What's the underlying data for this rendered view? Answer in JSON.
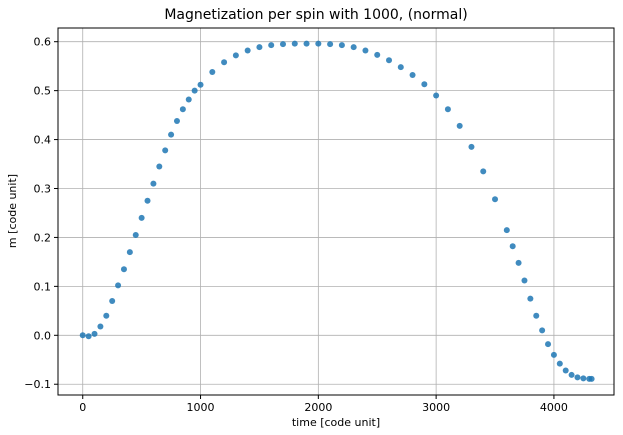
{
  "chart_data": {
    "type": "scatter",
    "title": "Magnetization per spin with 1000, (normal)",
    "xlabel": "time [code unit]",
    "ylabel": "m [code unit]",
    "xlim": [
      -210,
      4510
    ],
    "ylim": [
      -0.122,
      0.628
    ],
    "xticks": [
      0,
      1000,
      2000,
      3000,
      4000
    ],
    "yticks": [
      -0.1,
      0.0,
      0.1,
      0.2,
      0.3,
      0.4,
      0.5,
      0.6
    ],
    "xtick_labels": [
      "0",
      "1000",
      "2000",
      "3000",
      "4000"
    ],
    "ytick_labels": [
      "−0.1",
      "0.0",
      "0.1",
      "0.2",
      "0.3",
      "0.4",
      "0.5",
      "0.6"
    ],
    "grid": true,
    "color": "#1f77b4",
    "series": [
      {
        "x": [
          0,
          50,
          100,
          150,
          200,
          250,
          300,
          350,
          400,
          450,
          500,
          550,
          600,
          650,
          700,
          750,
          800,
          850,
          900,
          950,
          1000,
          1100,
          1200,
          1300,
          1400,
          1500,
          1600,
          1700,
          1800,
          1900,
          2000,
          2100,
          2200,
          2300,
          2400,
          2500,
          2600,
          2700,
          2800,
          2900,
          3000,
          3100,
          3200,
          3300,
          3400,
          3500,
          3600,
          3650,
          3700,
          3750,
          3800,
          3850,
          3900,
          3950,
          4000,
          4050,
          4100,
          4150,
          4200,
          4250,
          4300,
          4320
        ],
        "y": [
          0.0,
          -0.002,
          0.003,
          0.018,
          0.04,
          0.07,
          0.102,
          0.135,
          0.17,
          0.205,
          0.24,
          0.275,
          0.31,
          0.345,
          0.378,
          0.41,
          0.438,
          0.462,
          0.482,
          0.5,
          0.512,
          0.538,
          0.558,
          0.572,
          0.582,
          0.589,
          0.593,
          0.595,
          0.596,
          0.596,
          0.596,
          0.595,
          0.593,
          0.589,
          0.582,
          0.573,
          0.562,
          0.548,
          0.532,
          0.513,
          0.49,
          0.462,
          0.428,
          0.385,
          0.335,
          0.278,
          0.215,
          0.182,
          0.148,
          0.112,
          0.075,
          0.04,
          0.01,
          -0.018,
          -0.04,
          -0.058,
          -0.072,
          -0.081,
          -0.086,
          -0.088,
          -0.089,
          -0.089
        ]
      }
    ]
  }
}
